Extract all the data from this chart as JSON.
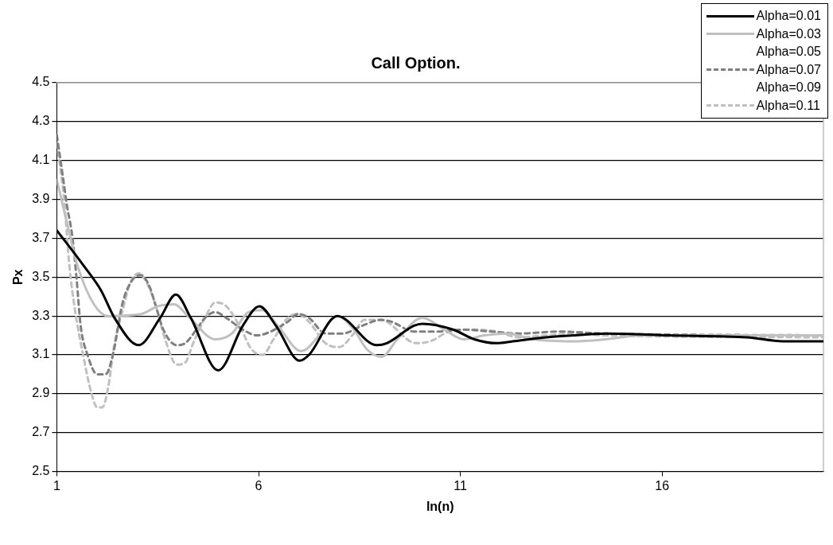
{
  "chart_data": {
    "type": "line",
    "title": "Call Option.",
    "xlabel": "ln(n)",
    "ylabel": "Px",
    "xlim": [
      1,
      20
    ],
    "xticks": [
      1,
      6,
      11,
      16
    ],
    "ylim": [
      2.5,
      4.5
    ],
    "yticks": [
      {
        "value": 2.5,
        "label": "2.5"
      },
      {
        "value": 2.7,
        "label": "2.7"
      },
      {
        "value": 2.9,
        "label": "2.9"
      },
      {
        "value": 3.1,
        "label": "3.1"
      },
      {
        "value": 3.3,
        "label": "3.3"
      },
      {
        "value": 3.5,
        "label": "3.5"
      },
      {
        "value": 3.7,
        "label": "3.7"
      },
      {
        "value": 3.9,
        "label": "3.9"
      },
      {
        "value": 4.1,
        "label": "4.1"
      },
      {
        "value": 4.3,
        "label": "4.3"
      },
      {
        "value": 4.5,
        "label": "4.5"
      }
    ],
    "grid": "y",
    "legend": "top right",
    "marker": "none",
    "series": [
      {
        "name": "Alpha=0.01",
        "color": "#000000",
        "line_style": "solid",
        "x": [
          1,
          1.66,
          2.1,
          2.43,
          3.03,
          3.56,
          3.95,
          4.32,
          5.0,
          5.61,
          6.02,
          6.43,
          7.02,
          7.25,
          7.95,
          8.93,
          9.18,
          9.85,
          10.06,
          10.82,
          11.35,
          11.9,
          12.3,
          13.13,
          13.8,
          14.6,
          16.2,
          18.1,
          19.0,
          20
        ],
        "values": [
          3.74,
          3.56,
          3.43,
          3.29,
          3.15,
          3.29,
          3.41,
          3.29,
          3.02,
          3.25,
          3.35,
          3.25,
          3.07,
          3.1,
          3.3,
          3.15,
          3.16,
          3.25,
          3.26,
          3.23,
          3.18,
          3.16,
          3.17,
          3.19,
          3.2,
          3.21,
          3.2,
          3.19,
          3.17,
          3.17
        ]
      },
      {
        "name": "Alpha=0.03",
        "color": "#c0c0c0",
        "line_style": "solid",
        "x": [
          1,
          1.25,
          1.51,
          1.92,
          2.27,
          3.09,
          3.5,
          3.91,
          4.25,
          4.93,
          5.34,
          5.75,
          6.1,
          6.51,
          7.05,
          7.19,
          7.54,
          7.95,
          8.36,
          8.68,
          9.05,
          9.44,
          10.06,
          10.6,
          11.08,
          11.6,
          12.17,
          12.8,
          13.8,
          14.6,
          15.5,
          20
        ],
        "values": [
          4.0,
          3.78,
          3.56,
          3.36,
          3.3,
          3.31,
          3.35,
          3.36,
          3.3,
          3.18,
          3.21,
          3.32,
          3.33,
          3.24,
          3.12,
          3.13,
          3.21,
          3.3,
          3.23,
          3.13,
          3.09,
          3.18,
          3.29,
          3.23,
          3.18,
          3.2,
          3.21,
          3.18,
          3.17,
          3.18,
          3.2,
          3.2
        ]
      },
      {
        "name": "Alpha=0.05"
      },
      {
        "name": "Alpha=0.07",
        "color": "#808080",
        "line_style": "dashed",
        "x": [
          1,
          1.14,
          1.25,
          1.39,
          1.49,
          1.59,
          1.76,
          2.0,
          2.21,
          2.41,
          2.62,
          2.89,
          3.09,
          3.3,
          3.44,
          3.64,
          3.97,
          4.18,
          4.46,
          4.67,
          4.93,
          5.2,
          5.61,
          5.96,
          6.3,
          6.72,
          6.98,
          7.25,
          7.66,
          8.08,
          8.57,
          9.03,
          9.3,
          9.85,
          10.4,
          11.08,
          11.76,
          12.45,
          13.48,
          14.5,
          20
        ],
        "values": [
          4.23,
          4.03,
          3.87,
          3.7,
          3.49,
          3.25,
          3.1,
          3.0,
          3.0,
          3.12,
          3.36,
          3.49,
          3.51,
          3.45,
          3.36,
          3.23,
          3.15,
          3.16,
          3.23,
          3.29,
          3.32,
          3.29,
          3.23,
          3.2,
          3.22,
          3.27,
          3.31,
          3.29,
          3.21,
          3.21,
          3.25,
          3.28,
          3.27,
          3.22,
          3.22,
          3.23,
          3.22,
          3.21,
          3.22,
          3.21,
          3.2
        ]
      },
      {
        "name": "Alpha=0.09"
      },
      {
        "name": "Alpha=0.11",
        "color": "#c0c0c0",
        "line_style": "dashed",
        "x": [
          1,
          1.08,
          1.18,
          1.31,
          1.45,
          1.66,
          1.86,
          2.0,
          2.13,
          2.27,
          2.43,
          2.62,
          2.82,
          3.03,
          3.23,
          3.44,
          3.7,
          3.97,
          4.18,
          4.38,
          4.67,
          4.93,
          5.2,
          5.55,
          5.82,
          6.1,
          6.37,
          6.72,
          6.98,
          7.25,
          7.66,
          8.0,
          8.36,
          8.62,
          9.03,
          9.91,
          10.26,
          10.73,
          11.35,
          11.9,
          12.45,
          13.13,
          13.8,
          14.6,
          20
        ],
        "values": [
          4.19,
          4.07,
          3.9,
          3.56,
          3.33,
          3.09,
          2.9,
          2.83,
          2.83,
          2.93,
          3.16,
          3.32,
          3.47,
          3.52,
          3.47,
          3.36,
          3.17,
          3.05,
          3.06,
          3.16,
          3.29,
          3.37,
          3.35,
          3.24,
          3.13,
          3.1,
          3.18,
          3.29,
          3.31,
          3.27,
          3.16,
          3.14,
          3.21,
          3.28,
          3.28,
          3.16,
          3.17,
          3.22,
          3.23,
          3.22,
          3.19,
          3.2,
          3.21,
          3.2,
          3.19
        ]
      }
    ]
  }
}
